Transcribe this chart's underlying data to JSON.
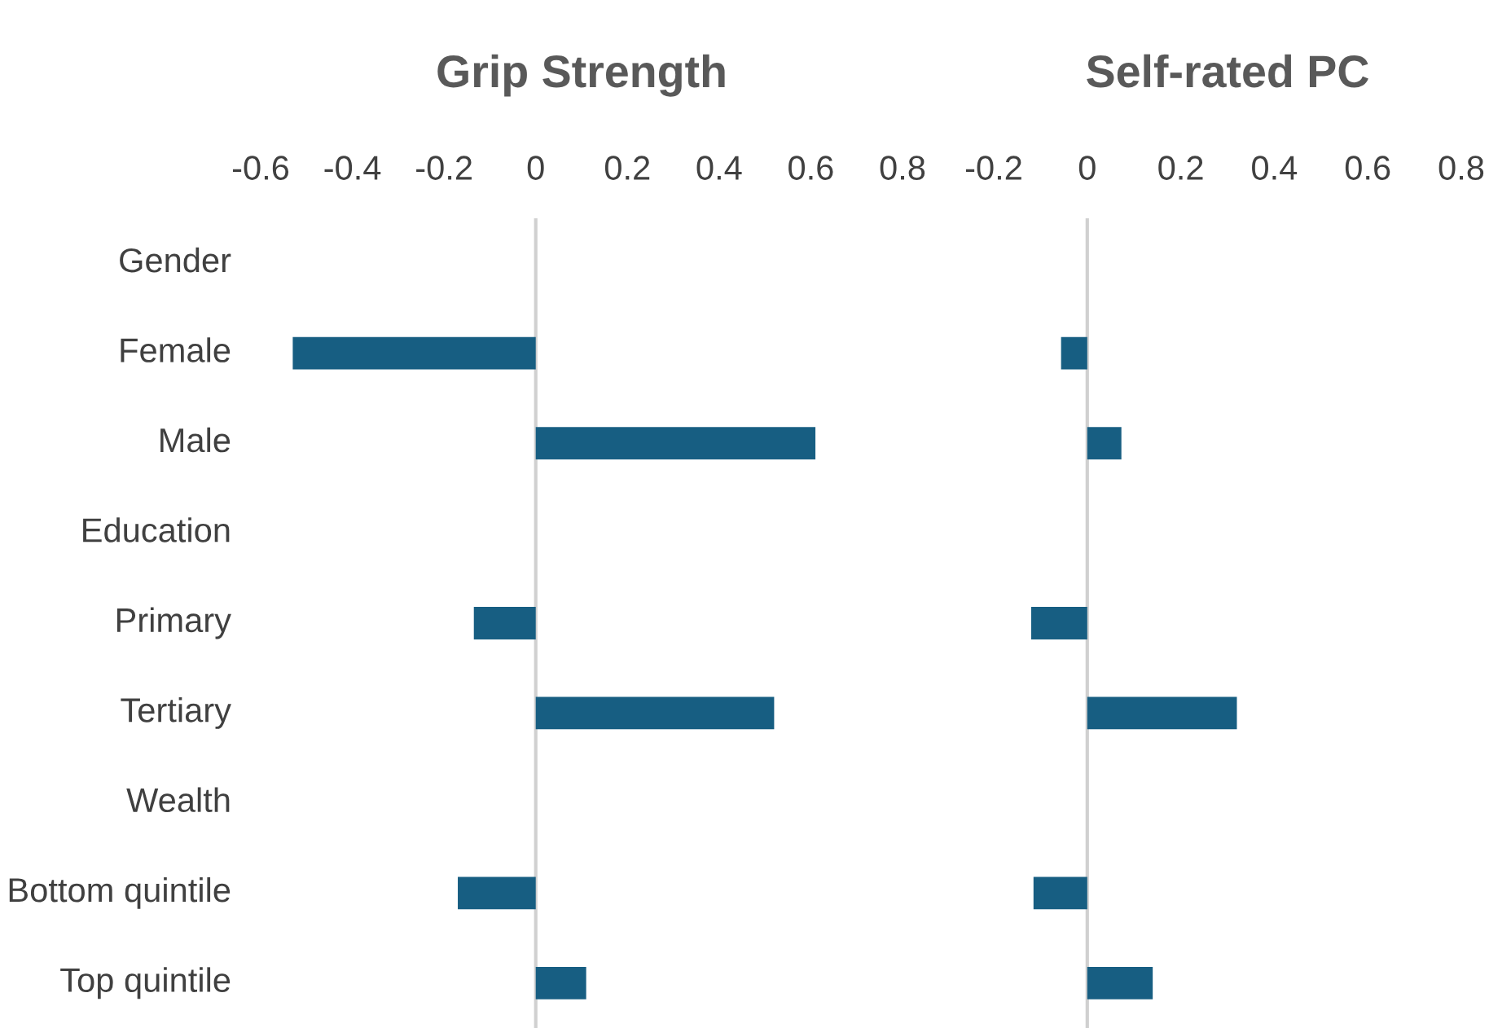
{
  "chart_data": [
    {
      "type": "bar",
      "orientation": "horizontal",
      "title": "Grip Strength",
      "categories": [
        "Gender",
        "Female",
        "Male",
        "Education",
        "Primary",
        "Tertiary",
        "Wealth",
        "Bottom quintile",
        "Top quintile"
      ],
      "series": [
        {
          "color": "#175e82",
          "values": [
            null,
            -0.53,
            0.61,
            null,
            -0.135,
            0.52,
            null,
            -0.17,
            0.11
          ]
        }
      ],
      "xlim": [
        -0.6,
        0.8
      ],
      "xticks": [
        -0.6,
        -0.4,
        -0.2,
        0,
        0.2,
        0.4,
        0.6,
        0.8
      ],
      "ref_lines": [
        {
          "axis": "x",
          "value": 0,
          "color": "#d0d0d0"
        }
      ],
      "grid": false,
      "legend": false
    },
    {
      "type": "bar",
      "orientation": "horizontal",
      "title": "Self-rated PC",
      "categories": [
        null,
        null,
        null,
        null,
        null,
        null,
        null,
        null,
        null
      ],
      "series": [
        {
          "color": "#175e82",
          "values": [
            null,
            -0.056,
            0.073,
            null,
            -0.12,
            0.32,
            null,
            -0.115,
            0.14
          ]
        }
      ],
      "xlim": [
        -0.2,
        0.8
      ],
      "xticks": [
        -0.2,
        0,
        0.2,
        0.4,
        0.6,
        0.8
      ],
      "ref_lines": [
        {
          "axis": "x",
          "value": 0,
          "color": "#d0d0d0"
        }
      ],
      "grid": false,
      "legend": false,
      "tick_labels": "x"
    }
  ]
}
